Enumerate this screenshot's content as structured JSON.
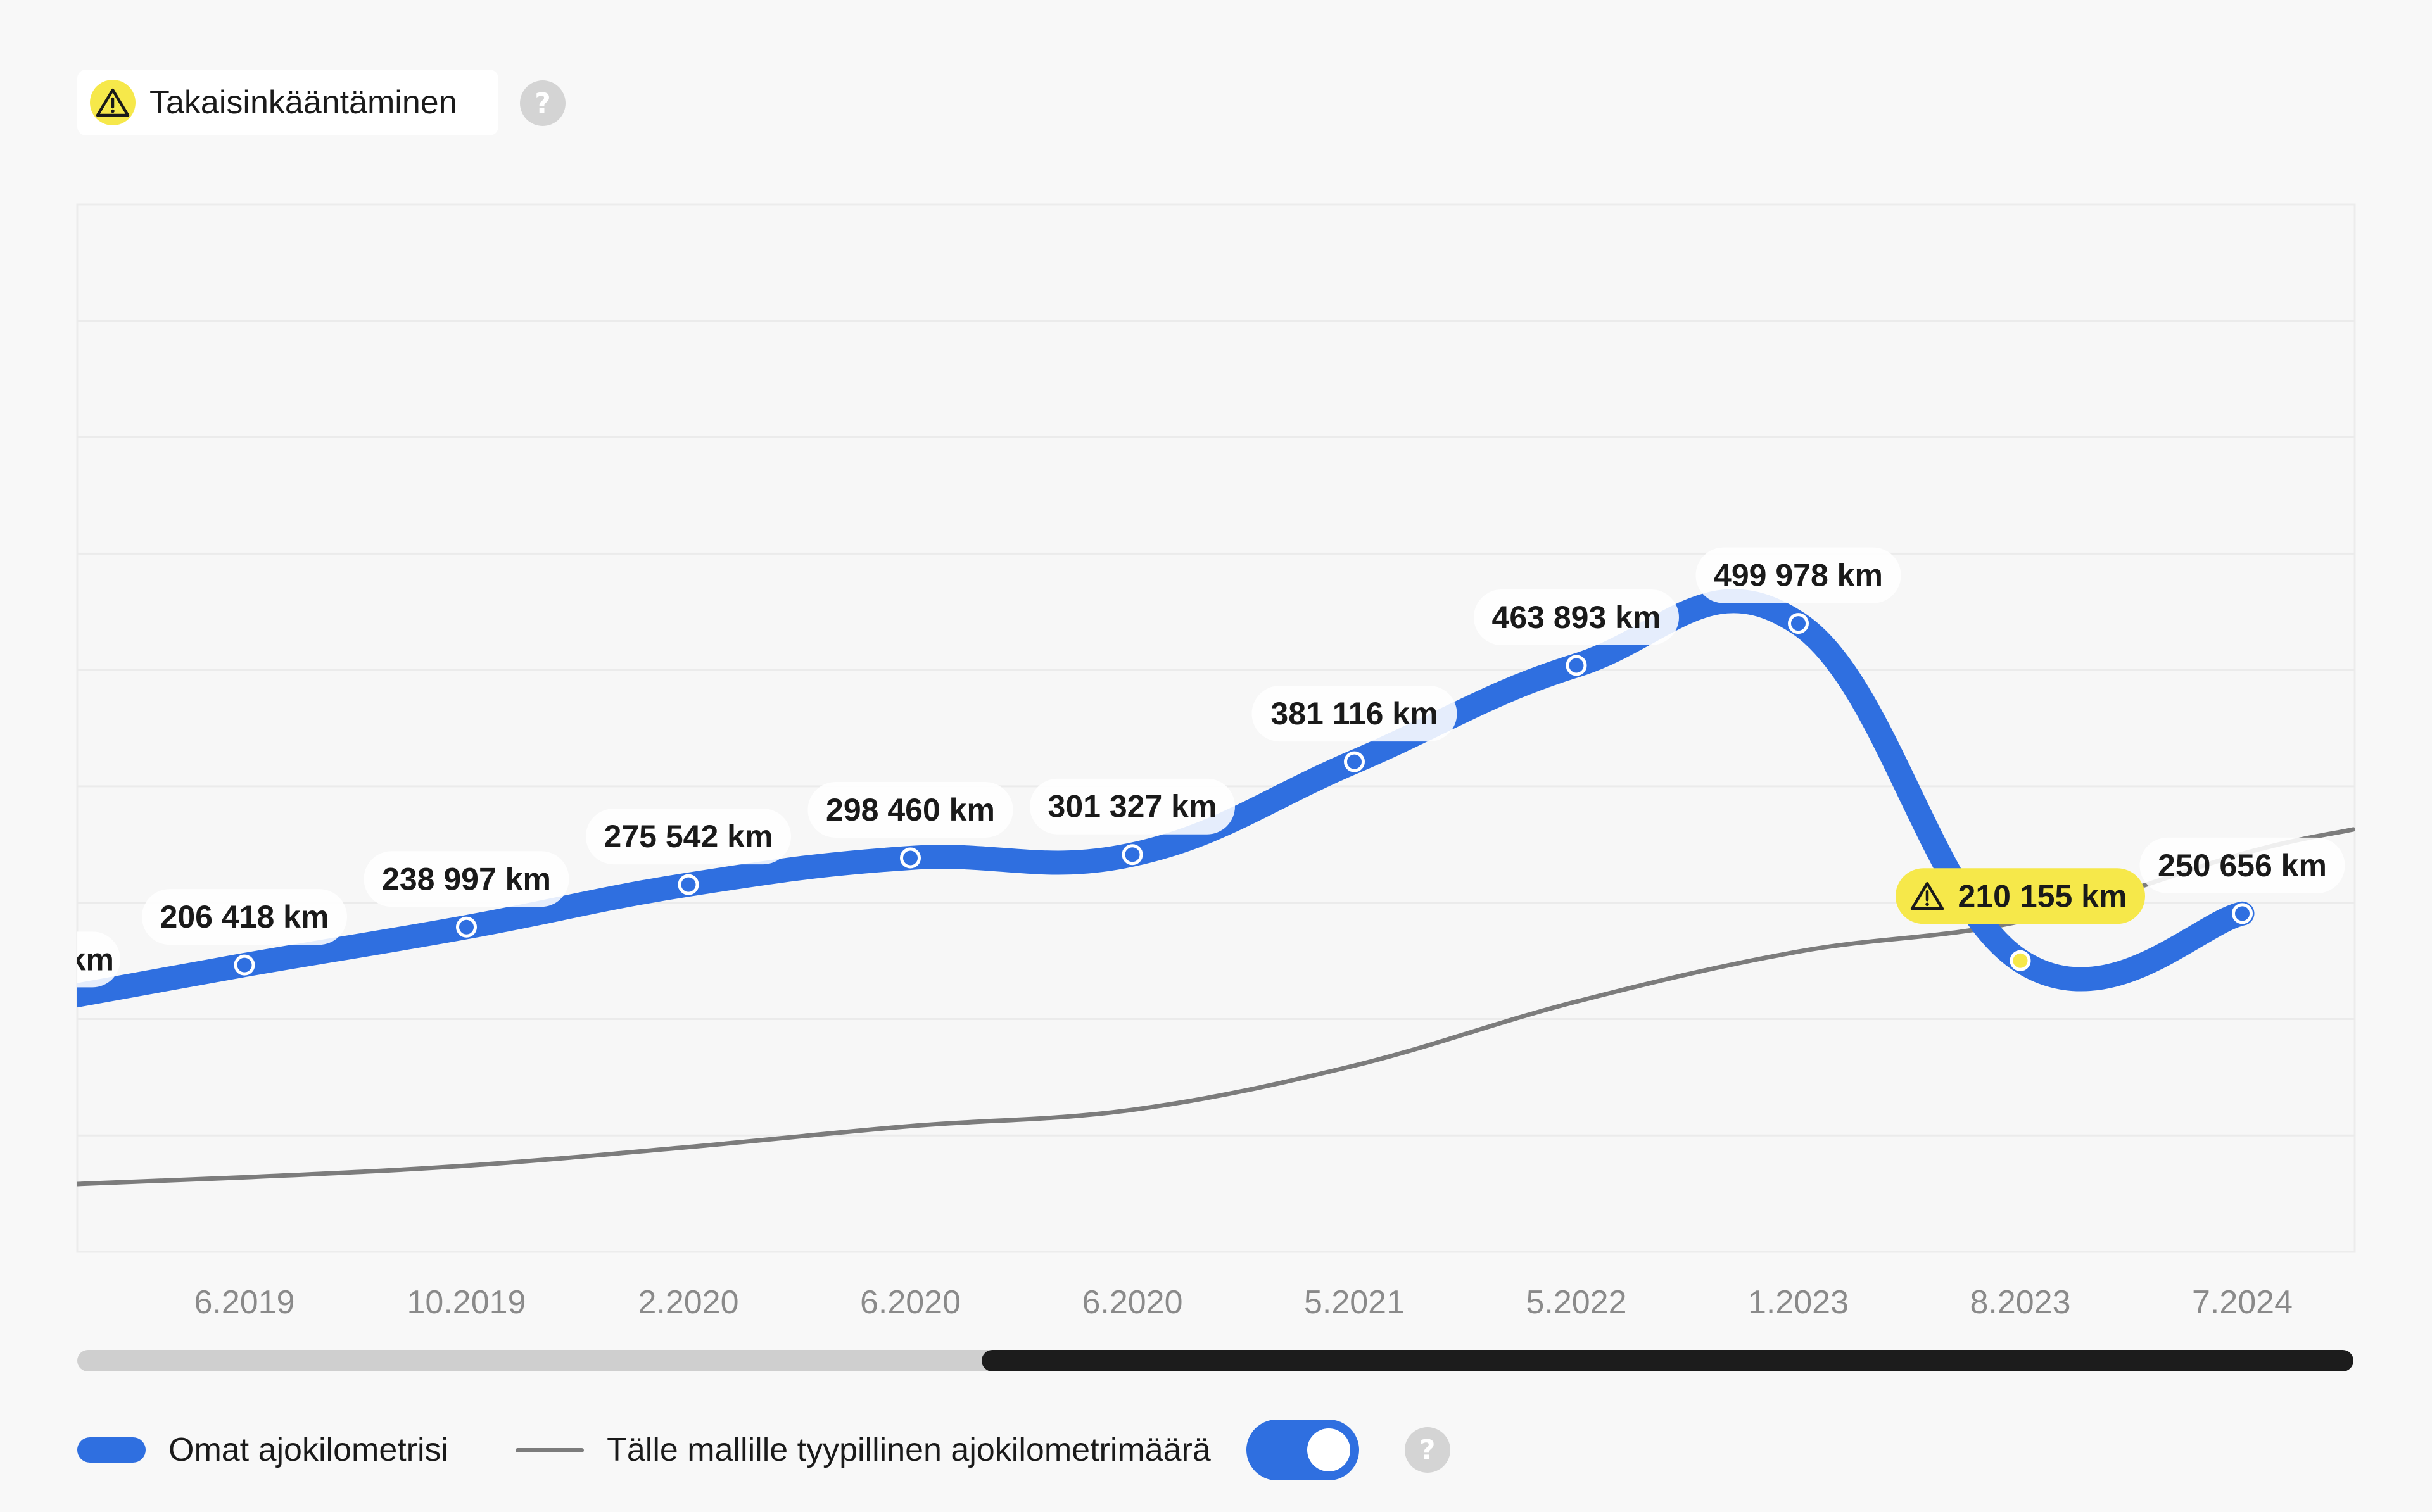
{
  "warning_badge": {
    "label": "Takaisinkääntäminen",
    "icon": "warning-icon",
    "help_icon": "question-icon"
  },
  "colors": {
    "own_series": "#2f6fe0",
    "typical_series": "#7c7c7c",
    "warning": "#f6e84a"
  },
  "chart_data": {
    "type": "line",
    "title": "",
    "xlabel": "",
    "ylabel": "",
    "grid": true,
    "categories": [
      "6.2019",
      "10.2019",
      "2.2020",
      "6.2020",
      "6.2020",
      "5.2021",
      "5.2022",
      "1.2023",
      "8.2023",
      "7.2024"
    ],
    "ylim": [
      -40000,
      860000
    ],
    "series": [
      {
        "name": "Omat ajokilometrisi",
        "first_point": {
          "value": 184000,
          "label": "km"
        },
        "values": [
          206418,
          238997,
          275542,
          298460,
          301327,
          381116,
          463893,
          499978,
          210155,
          250656
        ],
        "labels": [
          "206 418 km",
          "238 997 km",
          "275 542 km",
          "298 460 km",
          "301 327 km",
          "381 116 km",
          "463 893 km",
          "499 978 km",
          "210 155 km",
          "250 656 km"
        ],
        "warning_index": 8
      },
      {
        "name": "Tälle mallille tyypillinen ajokilometrimäärä",
        "x_start": 0.25,
        "values_start": 18000,
        "values": [
          24000,
          34000,
          50000,
          68000,
          82000,
          120000,
          175000,
          218000,
          244000,
          302000
        ],
        "x_end": 10.5,
        "values_end": 323000
      }
    ]
  },
  "scrollbar": {
    "visible_fraction": 0.6
  },
  "legend": {
    "own_label": "Omat ajokilometrisi",
    "typical_label": "Tälle mallille tyypillinen ajokilometrimäärä",
    "toggle_on": true,
    "help_icon": "question-icon"
  }
}
